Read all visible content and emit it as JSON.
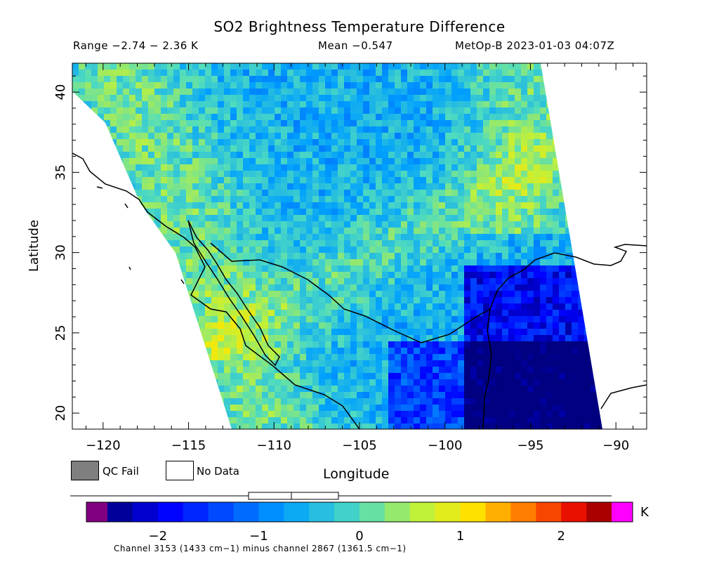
{
  "title": "SO2 Brightness Temperature Difference",
  "range_text": "Range −2.74 − 2.36 K",
  "mean_text": "Mean −0.547",
  "satellite_text": "MetOp-B 2023-01-03 04:07Z",
  "footer": "Channel 3153 (1433 cm−1) minus channel 2867 (1361.5 cm−1)",
  "legend": {
    "qc_fail": "QC Fail",
    "no_data": "No Data",
    "qc_fail_color": "#7f7f7f",
    "no_data_color": "#ffffff"
  },
  "chart_data": {
    "type": "heatmap",
    "title": "SO2 Brightness Temperature Difference",
    "xlabel": "Longitude",
    "ylabel": "Latitude",
    "xlim": [
      -121.8,
      -88.2
    ],
    "ylim": [
      19.0,
      41.8
    ],
    "x_ticks": [
      -120,
      -115,
      -110,
      -105,
      -100,
      -95,
      -90
    ],
    "x_tick_labels": [
      "−120",
      "−115",
      "−110",
      "−105",
      "−100",
      "−95",
      "−90"
    ],
    "y_ticks": [
      20,
      25,
      30,
      35,
      40
    ],
    "y_tick_labels": [
      "20",
      "25",
      "30",
      "35",
      "40"
    ],
    "value_range": [
      -2.74,
      2.36
    ],
    "mean": -0.547,
    "units": "K",
    "colorbar": {
      "range": [
        -2.5,
        2.5
      ],
      "ticks": [
        -2,
        -1,
        0,
        1,
        2
      ],
      "tick_labels": [
        "−2",
        "−1",
        "0",
        "1",
        "2"
      ],
      "under_color": "#800080",
      "over_color": "#ff00ff",
      "box_plot": {
        "min": -2.74,
        "q1": -1.0,
        "median": -0.6,
        "q3": -0.1,
        "max": 2.36
      }
    }
  }
}
